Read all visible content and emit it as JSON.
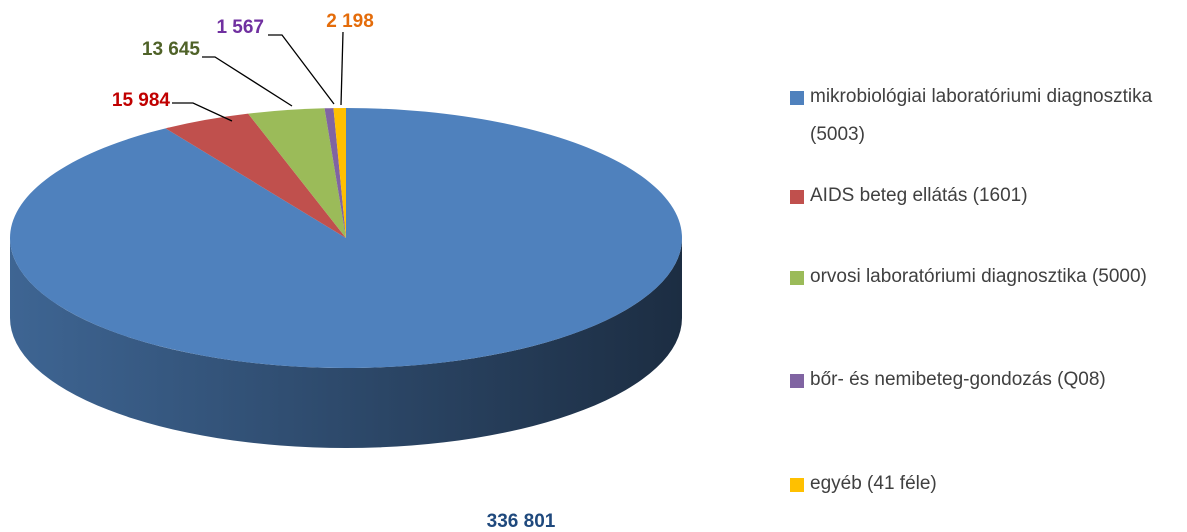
{
  "chart_data": {
    "type": "pie",
    "categories": [
      "mikrobiológiai laboratóriumi diagnosztika (5003)",
      "AIDS beteg ellátás (1601)",
      "orvosi laboratóriumi diagnosztika (5000)",
      "bőr- és nemibeteg-gondozás (Q08)",
      "egyéb (41 féle)"
    ],
    "values": [
      336801,
      15984,
      13645,
      1567,
      2198
    ],
    "value_labels": [
      "336 801",
      "15 984",
      "13 645",
      "1 567",
      "2 198"
    ],
    "colors": [
      "#4f81bd",
      "#c0504d",
      "#9bbb59",
      "#8064a2",
      "#ffc000"
    ],
    "label_colors": [
      "#1f497d",
      "#c00000",
      "#4f6228",
      "#7030a0",
      "#e46c0a"
    ],
    "legend": "right"
  }
}
